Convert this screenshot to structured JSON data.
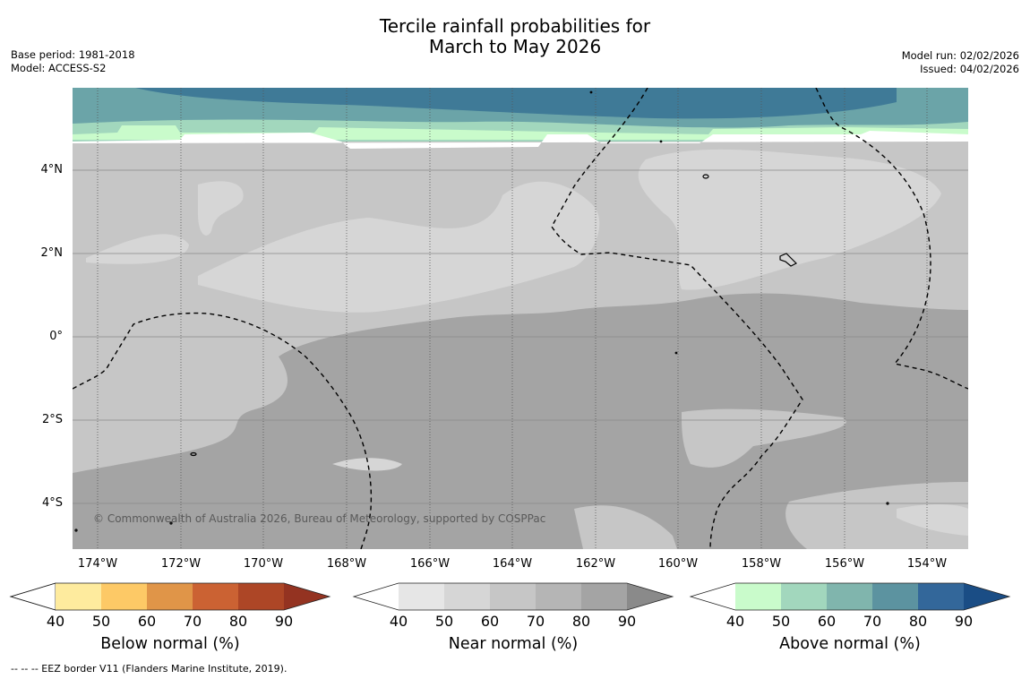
{
  "title": {
    "line1": "Tercile rainfall probabilities for",
    "line2": "March to May 2026"
  },
  "meta_left": {
    "base_period": "Base period: 1981-2018",
    "model": "Model: ACCESS-S2"
  },
  "meta_right": {
    "model_run": "Model run: 02/02/2026",
    "issued": "Issued: 04/02/2026"
  },
  "lat_labels": [
    "4°N",
    "2°N",
    "0°",
    "2°S",
    "4°S"
  ],
  "lon_labels": [
    "174°W",
    "172°W",
    "170°W",
    "168°W",
    "166°W",
    "164°W",
    "162°W",
    "160°W",
    "158°W",
    "156°W",
    "154°W"
  ],
  "copyright": "© Commonwealth of Australia 2026, Bureau of Meteorology, supported by COSPPac",
  "colorbars": [
    {
      "title": "Below normal (%)",
      "ticks": [
        "40",
        "50",
        "60",
        "70",
        "80",
        "90"
      ],
      "colors": [
        "#ffffff",
        "#feeb9e",
        "#fdc966",
        "#e09548",
        "#cb6233",
        "#ad4626",
        "#943321"
      ]
    },
    {
      "title": "Near normal (%)",
      "ticks": [
        "40",
        "50",
        "60",
        "70",
        "80",
        "90"
      ],
      "colors": [
        "#ffffff",
        "#e6e6e6",
        "#d6d6d6",
        "#c6c6c6",
        "#b5b5b5",
        "#a4a4a4",
        "#8a8a8a"
      ]
    },
    {
      "title": "Above normal (%)",
      "ticks": [
        "40",
        "50",
        "60",
        "70",
        "80",
        "90"
      ],
      "colors": [
        "#ffffff",
        "#c9fbcb",
        "#a2d7bd",
        "#80b5ad",
        "#5c93a0",
        "#33679a",
        "#1a4d85"
      ]
    }
  ],
  "footer": "--  --  -- EEZ border V11 (Flanders Marine Institute, 2019).",
  "map_colors": {
    "near_40": "#d6d6d6",
    "near_50": "#c6c6c6",
    "near_60": "#a4a4a4",
    "above_50": "#c9fbcb",
    "above_60": "#a2d7bd",
    "above_70": "#6ba4a8",
    "above_80": "#3f7a97"
  }
}
